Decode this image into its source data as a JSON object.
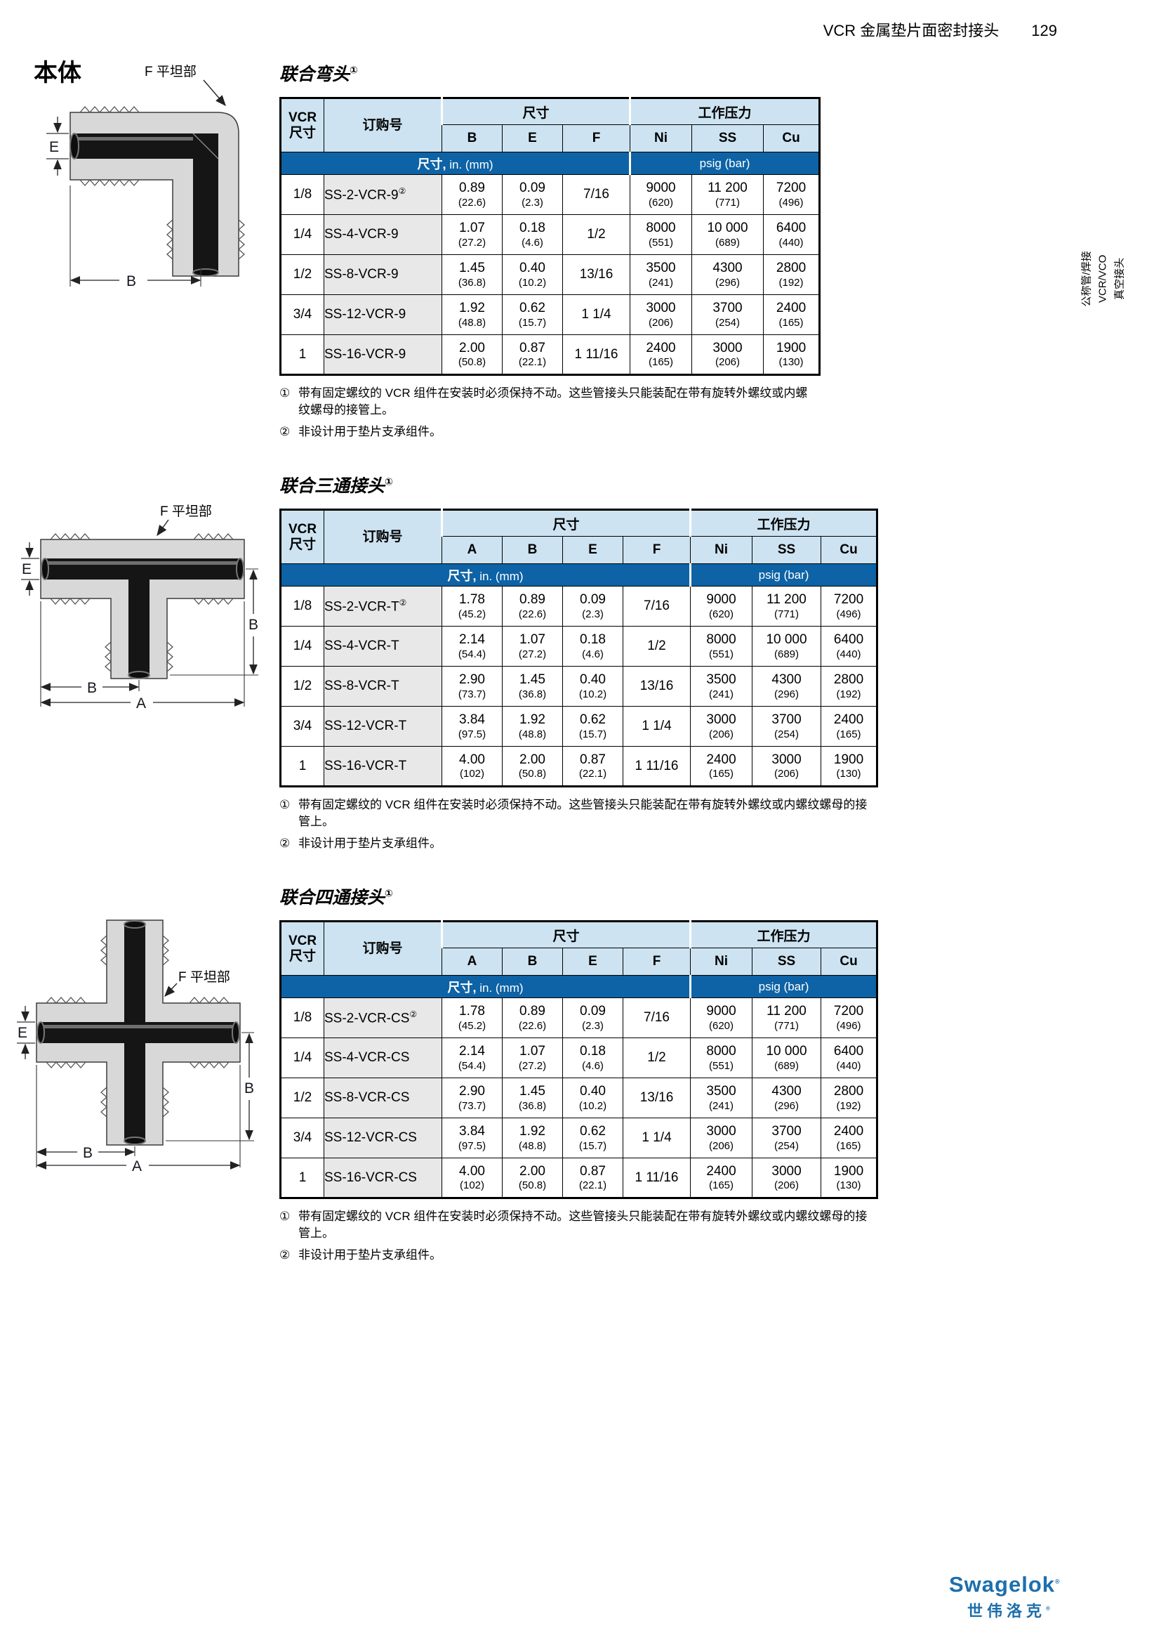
{
  "page": {
    "header": {
      "title": "VCR 金属垫片面密封接头",
      "page_number": "129"
    },
    "section_title": "本体",
    "sidebar": {
      "lines": [
        "公称管/焊接",
        "VCR/VCO",
        "真空接头"
      ]
    },
    "logo": {
      "brand": "Swagelok",
      "registered": "®",
      "brand_cn": "世伟洛克"
    },
    "colors": {
      "header_light_blue": "#cde3f1",
      "band_dark_blue": "#0d63a5",
      "part_column_gray": "#e8e8e8",
      "logo_blue": "#1c6fad"
    }
  },
  "diagrams": [
    {
      "type": "elbow",
      "flat_label": "F 平坦部",
      "dim_E": "E",
      "dim_B": "B"
    },
    {
      "type": "tee",
      "flat_label": "F 平坦部",
      "dim_E": "E",
      "dim_B_side": "B",
      "dim_B_bottom": "B",
      "dim_A": "A"
    },
    {
      "type": "cross",
      "flat_label": "F 平坦部",
      "dim_E": "E",
      "dim_B_side": "B",
      "dim_B_bottom": "B",
      "dim_A": "A"
    }
  ],
  "tables": [
    {
      "title": "联合弯头",
      "title_sup": "①",
      "head": {
        "size_col": [
          "VCR",
          "尺寸"
        ],
        "part_col": "订购号",
        "dims_group": "尺寸",
        "pressure_group": "工作压力",
        "dim_cols": [
          "B",
          "E",
          "F"
        ],
        "pressure_cols": [
          "Ni",
          "SS",
          "Cu"
        ],
        "units_dims_bold": "尺寸,",
        "units_dims_rest": "in. (mm)",
        "units_pressure": "psig (bar)"
      },
      "rows": [
        {
          "size": "1/8",
          "part": "SS-2-VCR-9",
          "part_sup": "②",
          "dims": [
            {
              "in": "0.89",
              "mm": "(22.6)"
            },
            {
              "in": "0.09",
              "mm": "(2.3)"
            },
            {
              "in": "7/16",
              "mm": ""
            }
          ],
          "press": [
            {
              "v": "9000",
              "bar": "(620)"
            },
            {
              "v": "11 200",
              "bar": "(771)"
            },
            {
              "v": "7200",
              "bar": "(496)"
            }
          ]
        },
        {
          "size": "1/4",
          "part": "SS-4-VCR-9",
          "part_sup": "",
          "dims": [
            {
              "in": "1.07",
              "mm": "(27.2)"
            },
            {
              "in": "0.18",
              "mm": "(4.6)"
            },
            {
              "in": "1/2",
              "mm": ""
            }
          ],
          "press": [
            {
              "v": "8000",
              "bar": "(551)"
            },
            {
              "v": "10 000",
              "bar": "(689)"
            },
            {
              "v": "6400",
              "bar": "(440)"
            }
          ]
        },
        {
          "size": "1/2",
          "part": "SS-8-VCR-9",
          "part_sup": "",
          "dims": [
            {
              "in": "1.45",
              "mm": "(36.8)"
            },
            {
              "in": "0.40",
              "mm": "(10.2)"
            },
            {
              "in": "13/16",
              "mm": ""
            }
          ],
          "press": [
            {
              "v": "3500",
              "bar": "(241)"
            },
            {
              "v": "4300",
              "bar": "(296)"
            },
            {
              "v": "2800",
              "bar": "(192)"
            }
          ]
        },
        {
          "size": "3/4",
          "part": "SS-12-VCR-9",
          "part_sup": "",
          "dims": [
            {
              "in": "1.92",
              "mm": "(48.8)"
            },
            {
              "in": "0.62",
              "mm": "(15.7)"
            },
            {
              "in": "1 1/4",
              "mm": ""
            }
          ],
          "press": [
            {
              "v": "3000",
              "bar": "(206)"
            },
            {
              "v": "3700",
              "bar": "(254)"
            },
            {
              "v": "2400",
              "bar": "(165)"
            }
          ]
        },
        {
          "size": "1",
          "part": "SS-16-VCR-9",
          "part_sup": "",
          "dims": [
            {
              "in": "2.00",
              "mm": "(50.8)"
            },
            {
              "in": "0.87",
              "mm": "(22.1)"
            },
            {
              "in": "1 11/16",
              "mm": ""
            }
          ],
          "press": [
            {
              "v": "2400",
              "bar": "(165)"
            },
            {
              "v": "3000",
              "bar": "(206)"
            },
            {
              "v": "1900",
              "bar": "(130)"
            }
          ]
        }
      ],
      "footnotes": [
        {
          "marker": "①",
          "text": "带有固定螺纹的 VCR 组件在安装时必须保持不动。这些管接头只能装配在带有旋转外螺纹或内螺纹螺母的接管上。"
        },
        {
          "marker": "②",
          "text": "非设计用于垫片支承组件。"
        }
      ]
    },
    {
      "title": "联合三通接头",
      "title_sup": "①",
      "head": {
        "size_col": [
          "VCR",
          "尺寸"
        ],
        "part_col": "订购号",
        "dims_group": "尺寸",
        "pressure_group": "工作压力",
        "dim_cols": [
          "A",
          "B",
          "E",
          "F"
        ],
        "pressure_cols": [
          "Ni",
          "SS",
          "Cu"
        ],
        "units_dims_bold": "尺寸,",
        "units_dims_rest": "in. (mm)",
        "units_pressure": "psig (bar)"
      },
      "rows": [
        {
          "size": "1/8",
          "part": "SS-2-VCR-T",
          "part_sup": "②",
          "dims": [
            {
              "in": "1.78",
              "mm": "(45.2)"
            },
            {
              "in": "0.89",
              "mm": "(22.6)"
            },
            {
              "in": "0.09",
              "mm": "(2.3)"
            },
            {
              "in": "7/16",
              "mm": ""
            }
          ],
          "press": [
            {
              "v": "9000",
              "bar": "(620)"
            },
            {
              "v": "11 200",
              "bar": "(771)"
            },
            {
              "v": "7200",
              "bar": "(496)"
            }
          ]
        },
        {
          "size": "1/4",
          "part": "SS-4-VCR-T",
          "part_sup": "",
          "dims": [
            {
              "in": "2.14",
              "mm": "(54.4)"
            },
            {
              "in": "1.07",
              "mm": "(27.2)"
            },
            {
              "in": "0.18",
              "mm": "(4.6)"
            },
            {
              "in": "1/2",
              "mm": ""
            }
          ],
          "press": [
            {
              "v": "8000",
              "bar": "(551)"
            },
            {
              "v": "10 000",
              "bar": "(689)"
            },
            {
              "v": "6400",
              "bar": "(440)"
            }
          ]
        },
        {
          "size": "1/2",
          "part": "SS-8-VCR-T",
          "part_sup": "",
          "dims": [
            {
              "in": "2.90",
              "mm": "(73.7)"
            },
            {
              "in": "1.45",
              "mm": "(36.8)"
            },
            {
              "in": "0.40",
              "mm": "(10.2)"
            },
            {
              "in": "13/16",
              "mm": ""
            }
          ],
          "press": [
            {
              "v": "3500",
              "bar": "(241)"
            },
            {
              "v": "4300",
              "bar": "(296)"
            },
            {
              "v": "2800",
              "bar": "(192)"
            }
          ]
        },
        {
          "size": "3/4",
          "part": "SS-12-VCR-T",
          "part_sup": "",
          "dims": [
            {
              "in": "3.84",
              "mm": "(97.5)"
            },
            {
              "in": "1.92",
              "mm": "(48.8)"
            },
            {
              "in": "0.62",
              "mm": "(15.7)"
            },
            {
              "in": "1 1/4",
              "mm": ""
            }
          ],
          "press": [
            {
              "v": "3000",
              "bar": "(206)"
            },
            {
              "v": "3700",
              "bar": "(254)"
            },
            {
              "v": "2400",
              "bar": "(165)"
            }
          ]
        },
        {
          "size": "1",
          "part": "SS-16-VCR-T",
          "part_sup": "",
          "dims": [
            {
              "in": "4.00",
              "mm": "(102)"
            },
            {
              "in": "2.00",
              "mm": "(50.8)"
            },
            {
              "in": "0.87",
              "mm": "(22.1)"
            },
            {
              "in": "1 11/16",
              "mm": ""
            }
          ],
          "press": [
            {
              "v": "2400",
              "bar": "(165)"
            },
            {
              "v": "3000",
              "bar": "(206)"
            },
            {
              "v": "1900",
              "bar": "(130)"
            }
          ]
        }
      ],
      "footnotes": [
        {
          "marker": "①",
          "text": "带有固定螺纹的 VCR 组件在安装时必须保持不动。这些管接头只能装配在带有旋转外螺纹或内螺纹螺母的接管上。"
        },
        {
          "marker": "②",
          "text": "非设计用于垫片支承组件。"
        }
      ]
    },
    {
      "title": "联合四通接头",
      "title_sup": "①",
      "head": {
        "size_col": [
          "VCR",
          "尺寸"
        ],
        "part_col": "订购号",
        "dims_group": "尺寸",
        "pressure_group": "工作压力",
        "dim_cols": [
          "A",
          "B",
          "E",
          "F"
        ],
        "pressure_cols": [
          "Ni",
          "SS",
          "Cu"
        ],
        "units_dims_bold": "尺寸,",
        "units_dims_rest": "in. (mm)",
        "units_pressure": "psig (bar)"
      },
      "rows": [
        {
          "size": "1/8",
          "part": "SS-2-VCR-CS",
          "part_sup": "②",
          "dims": [
            {
              "in": "1.78",
              "mm": "(45.2)"
            },
            {
              "in": "0.89",
              "mm": "(22.6)"
            },
            {
              "in": "0.09",
              "mm": "(2.3)"
            },
            {
              "in": "7/16",
              "mm": ""
            }
          ],
          "press": [
            {
              "v": "9000",
              "bar": "(620)"
            },
            {
              "v": "11 200",
              "bar": "(771)"
            },
            {
              "v": "7200",
              "bar": "(496)"
            }
          ]
        },
        {
          "size": "1/4",
          "part": "SS-4-VCR-CS",
          "part_sup": "",
          "dims": [
            {
              "in": "2.14",
              "mm": "(54.4)"
            },
            {
              "in": "1.07",
              "mm": "(27.2)"
            },
            {
              "in": "0.18",
              "mm": "(4.6)"
            },
            {
              "in": "1/2",
              "mm": ""
            }
          ],
          "press": [
            {
              "v": "8000",
              "bar": "(551)"
            },
            {
              "v": "10 000",
              "bar": "(689)"
            },
            {
              "v": "6400",
              "bar": "(440)"
            }
          ]
        },
        {
          "size": "1/2",
          "part": "SS-8-VCR-CS",
          "part_sup": "",
          "dims": [
            {
              "in": "2.90",
              "mm": "(73.7)"
            },
            {
              "in": "1.45",
              "mm": "(36.8)"
            },
            {
              "in": "0.40",
              "mm": "(10.2)"
            },
            {
              "in": "13/16",
              "mm": ""
            }
          ],
          "press": [
            {
              "v": "3500",
              "bar": "(241)"
            },
            {
              "v": "4300",
              "bar": "(296)"
            },
            {
              "v": "2800",
              "bar": "(192)"
            }
          ]
        },
        {
          "size": "3/4",
          "part": "SS-12-VCR-CS",
          "part_sup": "",
          "dims": [
            {
              "in": "3.84",
              "mm": "(97.5)"
            },
            {
              "in": "1.92",
              "mm": "(48.8)"
            },
            {
              "in": "0.62",
              "mm": "(15.7)"
            },
            {
              "in": "1 1/4",
              "mm": ""
            }
          ],
          "press": [
            {
              "v": "3000",
              "bar": "(206)"
            },
            {
              "v": "3700",
              "bar": "(254)"
            },
            {
              "v": "2400",
              "bar": "(165)"
            }
          ]
        },
        {
          "size": "1",
          "part": "SS-16-VCR-CS",
          "part_sup": "",
          "dims": [
            {
              "in": "4.00",
              "mm": "(102)"
            },
            {
              "in": "2.00",
              "mm": "(50.8)"
            },
            {
              "in": "0.87",
              "mm": "(22.1)"
            },
            {
              "in": "1 11/16",
              "mm": ""
            }
          ],
          "press": [
            {
              "v": "2400",
              "bar": "(165)"
            },
            {
              "v": "3000",
              "bar": "(206)"
            },
            {
              "v": "1900",
              "bar": "(130)"
            }
          ]
        }
      ],
      "footnotes": [
        {
          "marker": "①",
          "text": "带有固定螺纹的 VCR 组件在安装时必须保持不动。这些管接头只能装配在带有旋转外螺纹或内螺纹螺母的接管上。"
        },
        {
          "marker": "②",
          "text": "非设计用于垫片支承组件。"
        }
      ]
    }
  ]
}
